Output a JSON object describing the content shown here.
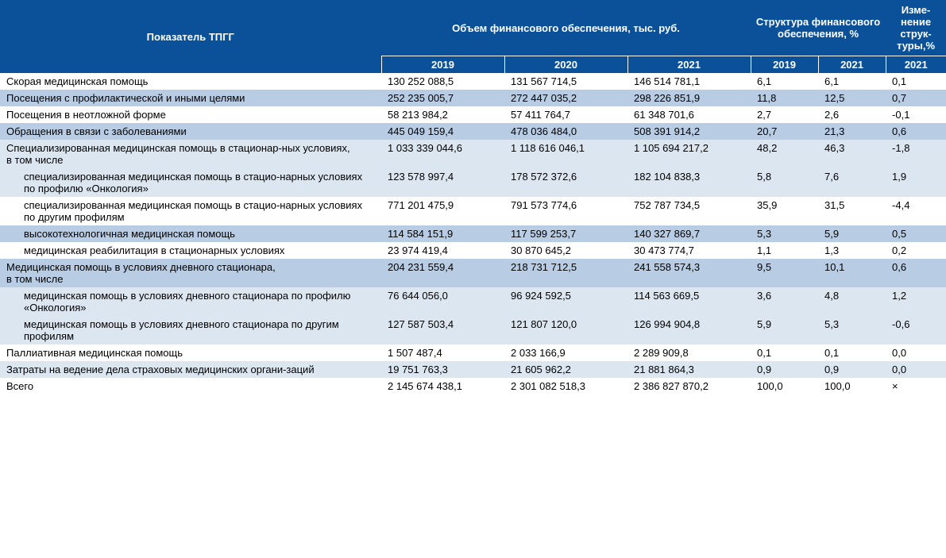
{
  "type": "table",
  "colors": {
    "header_bg": "#0a519a",
    "header_fg": "#ffffff",
    "row_none": "#ffffff",
    "row_light": "#dce6f1",
    "row_mid": "#b8cce4",
    "text": "#000000"
  },
  "header": {
    "col_indicator": "Показатель ТПГГ",
    "group_volume": "Объем финансового обеспечения, тыс. руб.",
    "group_structure": "Структура финансового обеспечения, %",
    "group_change": "Изме-нение струк-туры,%",
    "sub": [
      "2019",
      "2020",
      "2021",
      "2019",
      "2021",
      "2021"
    ]
  },
  "rows": [
    {
      "shade": "none",
      "indent": 0,
      "label": "Скорая медицинская помощь",
      "v": [
        "130 252 088,5",
        "131 567 714,5",
        "146 514 781,1",
        "6,1",
        "6,1",
        "0,1"
      ]
    },
    {
      "shade": "mid",
      "indent": 0,
      "label": "Посещения с профилактической и иными целями",
      "v": [
        "252 235 005,7",
        "272 447 035,2",
        "298 226 851,9",
        "11,8",
        "12,5",
        "0,7"
      ]
    },
    {
      "shade": "none",
      "indent": 0,
      "label": "Посещения в неотложной форме",
      "v": [
        "58 213 984,2",
        "57 411 764,7",
        "61 348 701,6",
        "2,7",
        "2,6",
        "-0,1"
      ]
    },
    {
      "shade": "mid",
      "indent": 0,
      "label": "Обращения в связи с заболеваниями",
      "v": [
        "445 049 159,4",
        "478 036 484,0",
        "508 391 914,2",
        "20,7",
        "21,3",
        "0,6"
      ]
    },
    {
      "shade": "light",
      "indent": 0,
      "label": "Специализированная медицинская помощь в стационар-ных условиях,\nв том числе",
      "v": [
        "1 033 339 044,6",
        "1 118 616 046,1",
        "1 105 694 217,2",
        "48,2",
        "46,3",
        "-1,8"
      ]
    },
    {
      "shade": "light",
      "indent": 1,
      "label": "специализированная медицинская помощь в стацио-нарных условиях по профилю «Онкология»",
      "v": [
        "123 578 997,4",
        "178 572 372,6",
        "182 104 838,3",
        "5,8",
        "7,6",
        "1,9"
      ]
    },
    {
      "shade": "none",
      "indent": 1,
      "label": "специализированная медицинская помощь в стацио-нарных условиях по другим профилям",
      "v": [
        "771 201 475,9",
        "791 573 774,6",
        "752 787 734,5",
        "35,9",
        "31,5",
        "-4,4"
      ]
    },
    {
      "shade": "mid",
      "indent": 1,
      "label": "высокотехнологичная медицинская помощь",
      "v": [
        "114 584 151,9",
        "117 599 253,7",
        "140 327 869,7",
        "5,3",
        "5,9",
        "0,5"
      ]
    },
    {
      "shade": "none",
      "indent": 1,
      "label": "медицинская реабилитация в стационарных условиях",
      "v": [
        "23 974 419,4",
        "30 870 645,2",
        "30 473 774,7",
        "1,1",
        "1,3",
        "0,2"
      ]
    },
    {
      "shade": "mid",
      "indent": 0,
      "label": "Медицинская помощь в условиях дневного стационара,\nв том числе",
      "v": [
        "204 231 559,4",
        "218 731 712,5",
        "241 558 574,3",
        "9,5",
        "10,1",
        "0,6"
      ]
    },
    {
      "shade": "light",
      "indent": 1,
      "label": "медицинская помощь в условиях дневного стационара по профилю «Онкология»",
      "v": [
        "76 644 056,0",
        "96 924 592,5",
        "114 563 669,5",
        "3,6",
        "4,8",
        "1,2"
      ]
    },
    {
      "shade": "light",
      "indent": 1,
      "label": "медицинская помощь в условиях дневного стационара по другим профилям",
      "v": [
        "127 587 503,4",
        "121 807 120,0",
        "126 994 904,8",
        "5,9",
        "5,3",
        "-0,6"
      ]
    },
    {
      "shade": "none",
      "indent": 0,
      "label": "Паллиативная медицинская помощь",
      "v": [
        "1 507 487,4",
        "2 033 166,9",
        "2 289 909,8",
        "0,1",
        "0,1",
        "0,0"
      ]
    },
    {
      "shade": "light",
      "indent": 0,
      "label": "Затраты на ведение дела страховых медицинских органи-заций",
      "v": [
        "19 751 763,3",
        "21 605 962,2",
        "21 881 864,3",
        "0,9",
        "0,9",
        "0,0"
      ]
    },
    {
      "shade": "none",
      "indent": 0,
      "label": "Всего",
      "v": [
        "2 145 674 438,1",
        "2 301 082 518,3",
        "2 386 827 870,2",
        "100,0",
        "100,0",
        "×"
      ]
    }
  ]
}
